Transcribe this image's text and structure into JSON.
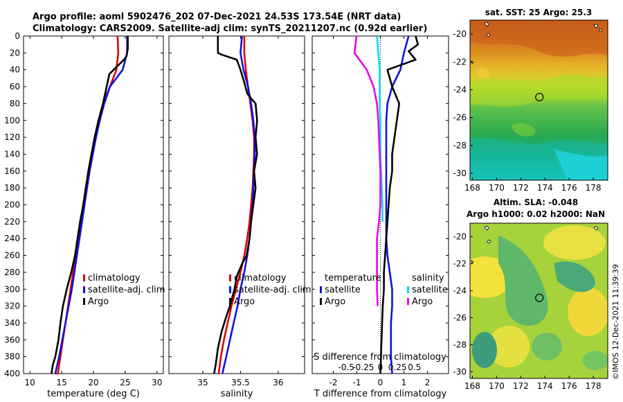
{
  "title": {
    "line1": "Argo profile: aoml 5902476_202 07-Dec-2021 24.53S 173.54E (NRT data)",
    "line2": "Climatology: CARS2009. Satellite-adj clim: synTS_20211207.nc (0.92d earlier)"
  },
  "copyright": "©IMOS 12-Dec-2021 11:39:39",
  "colors": {
    "climatology": "#e00000",
    "satellite": "#1010e0",
    "argo": "#000000",
    "sal_satellite": "#00e0e0",
    "sal_argo": "#ee00ee"
  },
  "chart_data": [
    {
      "type": "line",
      "title": "",
      "xlabel": "temperature (deg C)",
      "ylabel": "",
      "xlim": [
        9,
        31
      ],
      "ylim": [
        0,
        400
      ],
      "xticks": [
        10,
        15,
        20,
        25,
        30
      ],
      "yticks": [
        0,
        20,
        40,
        60,
        80,
        100,
        120,
        140,
        160,
        180,
        200,
        220,
        240,
        260,
        280,
        300,
        320,
        340,
        360,
        380,
        400
      ],
      "legend": [
        "climatology",
        "satellite-adj. clim",
        "Argo"
      ],
      "series": [
        {
          "name": "climatology",
          "color": "#e00000",
          "x": [
            23.8,
            23.9,
            23.6,
            22.6,
            21.5,
            20.8,
            20.2,
            19.7,
            19.2,
            18.8,
            18.4,
            18.0,
            17.6,
            17.2,
            16.8,
            16.4,
            16.0,
            15.6,
            15.2,
            14.8,
            14.4,
            14.0
          ],
          "y": [
            0,
            20,
            40,
            60,
            80,
            100,
            120,
            140,
            160,
            180,
            200,
            220,
            240,
            260,
            280,
            300,
            320,
            340,
            360,
            380,
            400,
            400
          ]
        },
        {
          "name": "satellite-adj. clim",
          "color": "#1010e0",
          "x": [
            25.3,
            25.3,
            24.6,
            22.6,
            21.7,
            21.0,
            20.4,
            19.9,
            19.4,
            19.0,
            18.6,
            18.2,
            17.8,
            17.4,
            17.0,
            16.6,
            16.1,
            15.6,
            15.1,
            14.6,
            14.0
          ],
          "y": [
            0,
            20,
            40,
            60,
            80,
            100,
            120,
            140,
            160,
            180,
            200,
            220,
            240,
            260,
            280,
            300,
            320,
            340,
            360,
            380,
            400
          ]
        },
        {
          "name": "Argo",
          "color": "#000000",
          "x": [
            25.4,
            25.4,
            25.2,
            24.8,
            22.5,
            21.5,
            20.8,
            20.2,
            19.7,
            19.2,
            18.8,
            18.4,
            17.9,
            17.5,
            17.1,
            16.5,
            15.8,
            15.2,
            14.8,
            14.5,
            14.0,
            13.6,
            13.4
          ],
          "y": [
            0,
            15,
            24,
            28,
            45,
            80,
            100,
            120,
            140,
            160,
            180,
            200,
            220,
            240,
            260,
            280,
            300,
            320,
            340,
            360,
            380,
            390,
            400
          ]
        }
      ]
    },
    {
      "type": "line",
      "xlabel": "salinity",
      "xlim": [
        34.55,
        36.35
      ],
      "ylim": [
        0,
        400
      ],
      "xticks": [
        35,
        35.5,
        36
      ],
      "legend": [
        "climatology",
        "satellite-adj. clim",
        "Argo"
      ],
      "series": [
        {
          "name": "climatology",
          "color": "#e00000",
          "x": [
            35.55,
            35.55,
            35.57,
            35.6,
            35.63,
            35.66,
            35.68,
            35.68,
            35.67,
            35.66,
            35.64,
            35.62,
            35.59,
            35.55,
            35.5,
            35.44,
            35.38,
            35.33,
            35.28,
            35.24,
            35.21
          ],
          "y": [
            0,
            20,
            40,
            60,
            80,
            100,
            120,
            140,
            160,
            180,
            200,
            220,
            240,
            260,
            280,
            300,
            320,
            340,
            360,
            380,
            400
          ]
        },
        {
          "name": "satellite-adj. clim",
          "color": "#1010e0",
          "x": [
            35.52,
            35.5,
            35.54,
            35.6,
            35.64,
            35.67,
            35.69,
            35.69,
            35.68,
            35.67,
            35.66,
            35.64,
            35.62,
            35.59,
            35.55,
            35.5,
            35.46,
            35.41,
            35.36,
            35.31,
            35.26
          ],
          "y": [
            0,
            20,
            40,
            60,
            80,
            100,
            120,
            140,
            160,
            180,
            200,
            220,
            240,
            260,
            280,
            300,
            320,
            340,
            360,
            380,
            400
          ]
        },
        {
          "name": "Argo",
          "color": "#000000",
          "x": [
            35.2,
            35.2,
            35.25,
            35.45,
            35.5,
            35.55,
            35.59,
            35.65,
            35.7,
            35.72,
            35.7,
            35.72,
            35.68,
            35.7,
            35.67,
            35.64,
            35.62,
            35.58,
            35.52,
            35.45,
            35.42,
            35.36,
            35.32,
            35.25,
            35.2,
            35.17,
            35.15
          ],
          "y": [
            0,
            20,
            22,
            28,
            40,
            55,
            68,
            75,
            80,
            100,
            120,
            140,
            160,
            180,
            200,
            220,
            240,
            260,
            270,
            285,
            300,
            320,
            330,
            350,
            370,
            390,
            400
          ]
        }
      ]
    },
    {
      "type": "line",
      "xlabel": "T difference from climatology",
      "x2label": "S difference from climatology",
      "xlim": [
        -2.9,
        2.9
      ],
      "x2lim": [
        -1.0,
        1.0
      ],
      "ylim": [
        0,
        400
      ],
      "xticks": [
        -2,
        -1,
        0,
        1,
        2
      ],
      "x2ticks": [
        -0.5,
        -0.25,
        0,
        0.25,
        0.5
      ],
      "x2ticklabels": [
        "-0.5",
        "-0.25",
        "0",
        "0.25",
        "0.5"
      ],
      "legend_temperature_title": "temperature",
      "legend_salinity_title": "salinity",
      "legend_temperature": [
        "satellite",
        "Argo"
      ],
      "legend_salinity": [
        "satellite",
        "Argo"
      ],
      "series": [
        {
          "name": "temperature satellite",
          "color": "#1010e0",
          "axis": "T",
          "x": [
            1.2,
            1.0,
            0.85,
            0.5,
            0.3,
            0.25,
            0.25,
            0.25,
            0.25,
            0.25,
            0.25,
            0.25,
            0.25,
            0.3,
            0.4,
            0.5,
            0.5,
            0.45,
            0.45,
            0.45,
            0.5
          ],
          "y": [
            0,
            20,
            40,
            60,
            80,
            100,
            120,
            140,
            160,
            180,
            200,
            220,
            240,
            260,
            280,
            300,
            320,
            340,
            360,
            380,
            400
          ]
        },
        {
          "name": "temperature Argo",
          "color": "#000000",
          "axis": "T",
          "x": [
            1.5,
            1.6,
            1.2,
            1.5,
            0.3,
            0.5,
            0.8,
            0.7,
            0.6,
            0.5,
            0.5,
            0.4,
            0.35,
            0.3,
            0.25,
            0.2,
            0.15,
            0.15,
            0.1,
            0.05,
            0.0
          ],
          "y": [
            0,
            10,
            18,
            28,
            40,
            60,
            80,
            100,
            120,
            140,
            160,
            180,
            200,
            220,
            240,
            260,
            280,
            300,
            320,
            360,
            400
          ]
        },
        {
          "name": "salinity satellite",
          "color": "#00e0e0",
          "axis": "S",
          "x": [
            -0.05,
            -0.03,
            -0.01,
            -0.01,
            -0.01,
            0.0,
            0.0,
            0.0,
            0.01,
            0.02,
            0.03,
            0.03
          ],
          "y": [
            0,
            20,
            40,
            60,
            80,
            100,
            120,
            140,
            160,
            180,
            200,
            220
          ]
        },
        {
          "name": "salinity Argo",
          "color": "#ee00ee",
          "axis": "S",
          "x": [
            -0.35,
            -0.38,
            -0.2,
            -0.1,
            -0.05,
            -0.03,
            -0.02,
            -0.01,
            0.0,
            0.0,
            0.0,
            -0.02,
            -0.05,
            -0.05,
            -0.05,
            -0.05,
            -0.04
          ],
          "y": [
            0,
            20,
            40,
            60,
            80,
            100,
            120,
            140,
            160,
            180,
            200,
            220,
            240,
            260,
            280,
            300,
            320
          ]
        }
      ]
    },
    {
      "type": "heatmap",
      "title": "sat. SST: 25 Argo: 25.3",
      "xlim": [
        167.8,
        179.2
      ],
      "ylim": [
        -30.5,
        -19.0
      ],
      "xticks": [
        168,
        170,
        172,
        174,
        176,
        178
      ],
      "yticks": [
        -20,
        -22,
        -24,
        -26,
        -28,
        -30
      ],
      "marker": {
        "lon": 173.54,
        "lat": -24.53
      }
    },
    {
      "type": "heatmap",
      "title_line1": "Altim. SLA: -0.048",
      "title_line2": "Argo h1000: 0.02 h2000: NaN",
      "xlim": [
        167.8,
        179.2
      ],
      "ylim": [
        -30.5,
        -19.0
      ],
      "xticks": [
        168,
        170,
        172,
        174,
        176,
        178
      ],
      "yticks": [
        -20,
        -22,
        -24,
        -26,
        -28,
        -30
      ],
      "marker": {
        "lon": 173.54,
        "lat": -24.53
      }
    }
  ]
}
